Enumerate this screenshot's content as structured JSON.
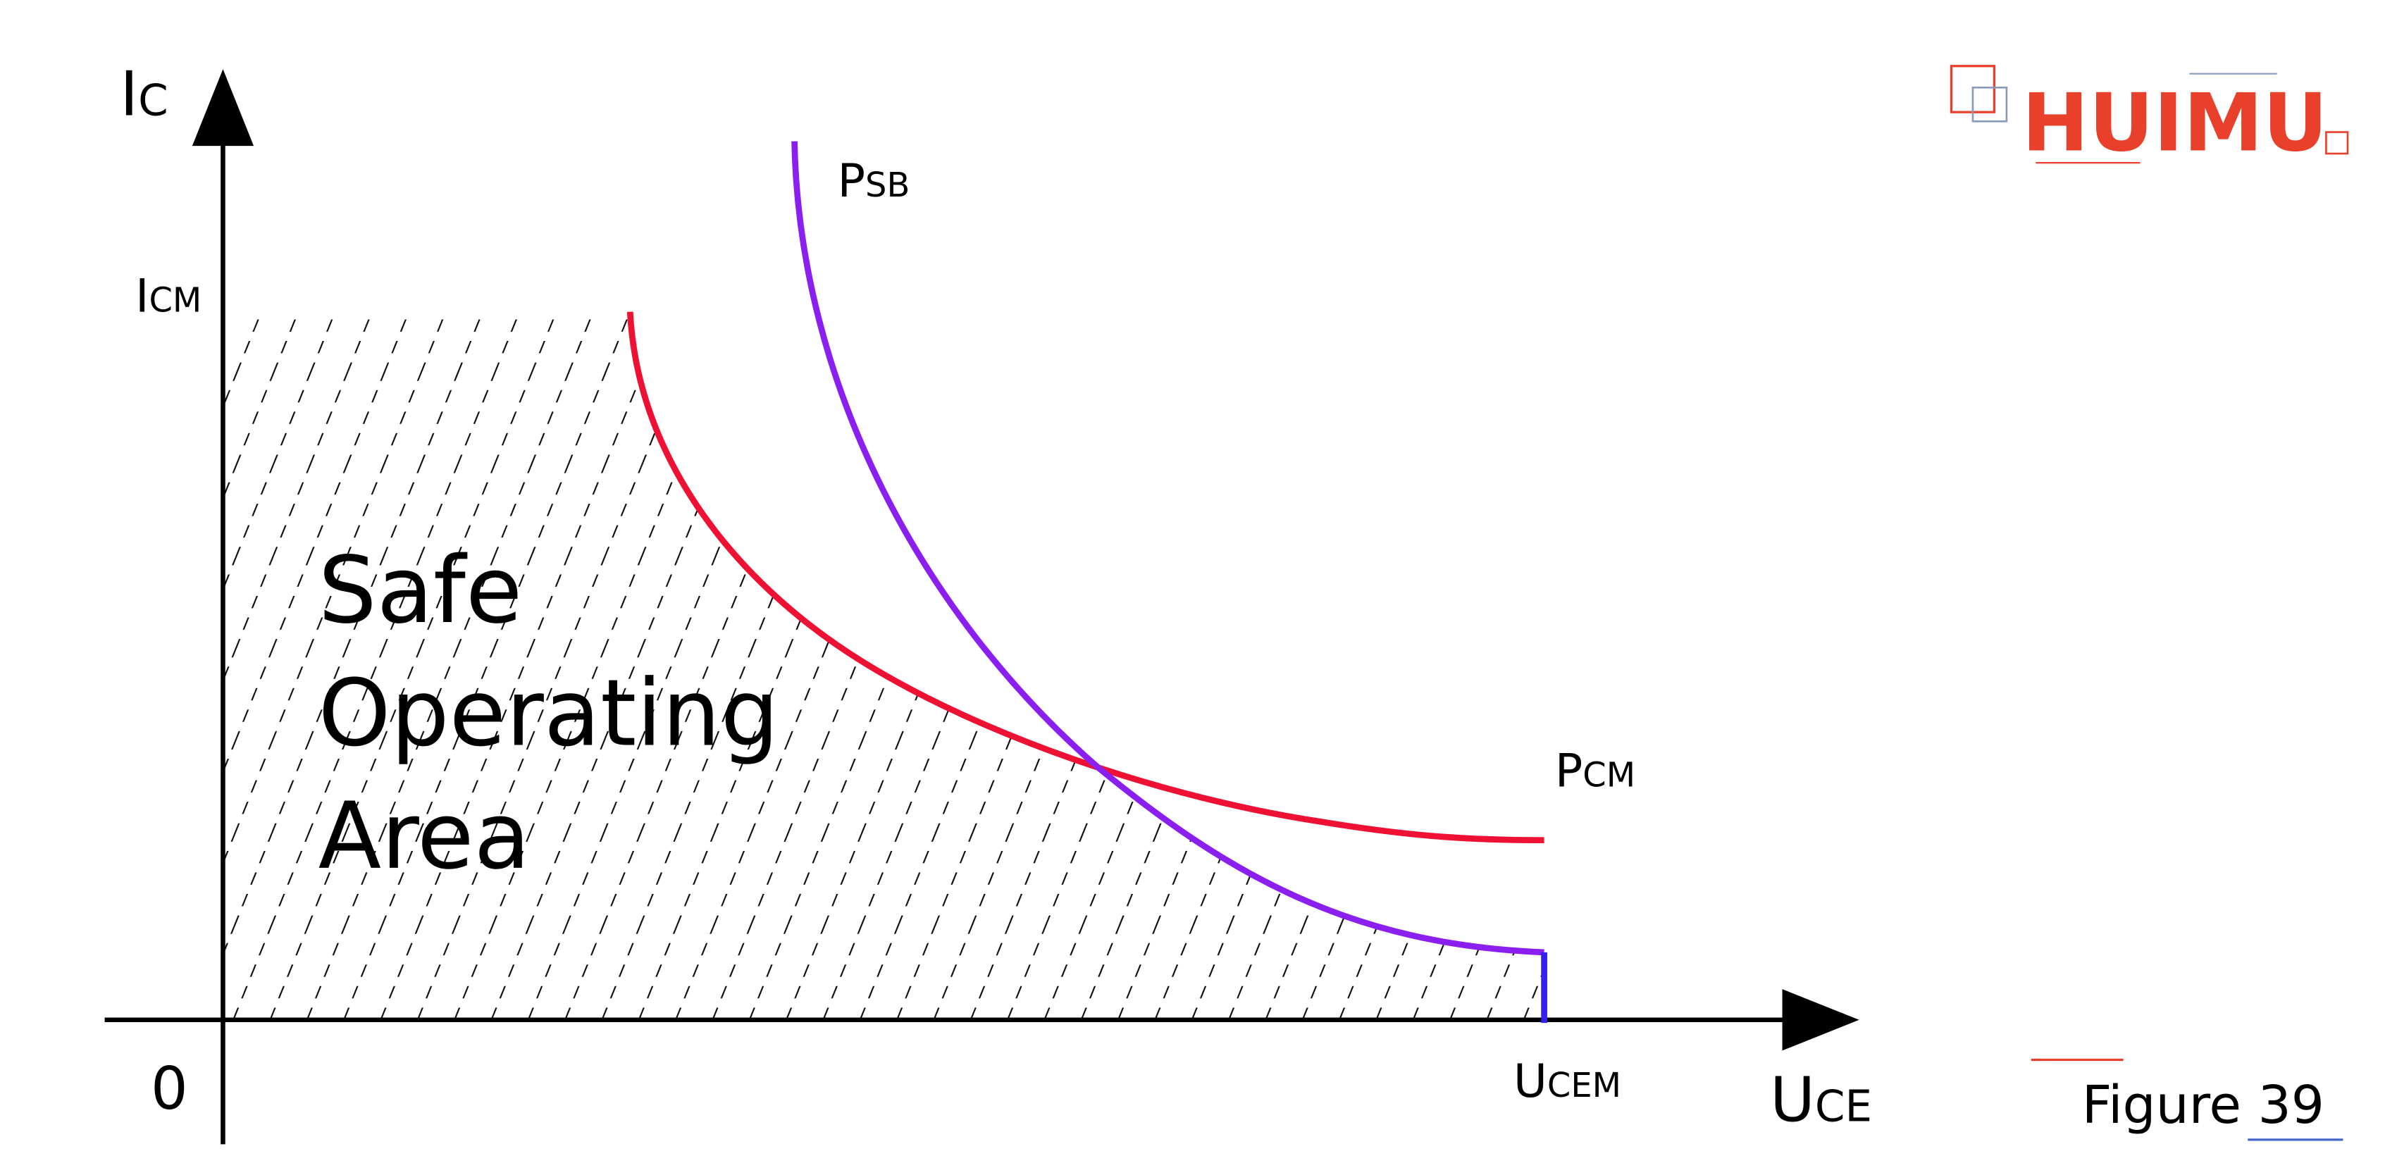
{
  "axes": {
    "y_label": {
      "main": "I",
      "sub": "C"
    },
    "x_label": {
      "main": "U",
      "sub": "CE"
    },
    "origin": "0"
  },
  "markers": {
    "icm": {
      "main": "I",
      "sub": "CM"
    },
    "ucem": {
      "main": "U",
      "sub": "CEM"
    }
  },
  "curves": {
    "psb": {
      "main": "P",
      "sub": "SB"
    },
    "pcm": {
      "main": "P",
      "sub": "CM"
    }
  },
  "area_label": [
    "Safe",
    "Operating",
    "Area"
  ],
  "logo": "HUIMU",
  "caption": "Figure 39"
}
